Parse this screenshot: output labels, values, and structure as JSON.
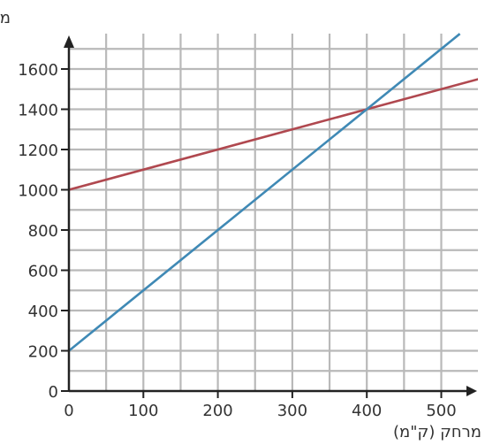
{
  "chart_data": {
    "type": "line",
    "title": "",
    "ylabel": "מחיר (ש\"ח)",
    "xlabel": "מרחק (ק\"מ)",
    "xlim": [
      0,
      540
    ],
    "ylim": [
      0,
      1760
    ],
    "x_ticks": [
      0,
      100,
      200,
      300,
      400,
      500
    ],
    "y_ticks": [
      0,
      200,
      400,
      600,
      800,
      1000,
      1200,
      1400,
      1600
    ],
    "x_gridlines": [
      0,
      50,
      100,
      150,
      200,
      250,
      300,
      350,
      400,
      450,
      500
    ],
    "y_gridlines": [
      100,
      200,
      300,
      400,
      500,
      600,
      700,
      800,
      900,
      1000,
      1100,
      1200,
      1300,
      1400,
      1500,
      1600,
      1700
    ],
    "grid": true,
    "legend": "none",
    "series": [
      {
        "color": "#b0484f",
        "x": [
          0,
          400,
          550
        ],
        "y": [
          1000,
          1400,
          1550
        ]
      },
      {
        "color": "#3f89b5",
        "x": [
          0,
          400,
          525
        ],
        "y": [
          200,
          1400,
          1775
        ]
      }
    ]
  }
}
